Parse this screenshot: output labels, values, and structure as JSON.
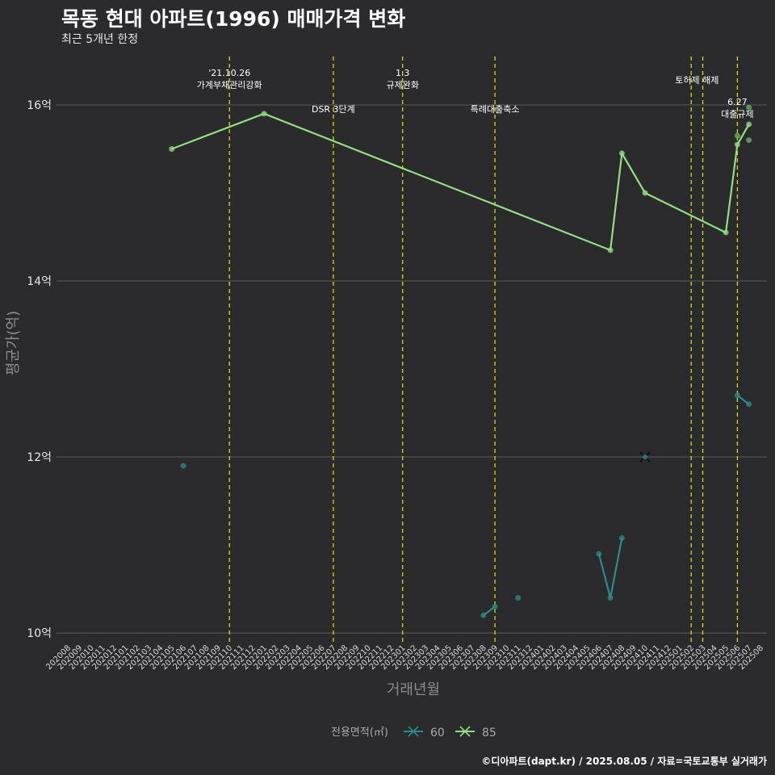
{
  "title": "목동 현대 아파트(1996) 매매가격 변화",
  "subtitle": "최근 5개년 한정",
  "caption": "©디아파트(dapt.kr) / 2025.08.05 / 자료=국토교통부 실거래가",
  "chart_data": {
    "type": "line",
    "xlabel": "거래년월",
    "ylabel": "평균가(억)",
    "ylim": [
      9.9,
      16.55
    ],
    "y_ticks": [
      10,
      12,
      14,
      16
    ],
    "y_tick_labels": [
      "10억",
      "12억",
      "14억",
      "16억"
    ],
    "legend_title": "전용면적(㎡)",
    "categories": [
      "202008",
      "202009",
      "202010",
      "202011",
      "202012",
      "202101",
      "202102",
      "202103",
      "202104",
      "202105",
      "202106",
      "202107",
      "202108",
      "202109",
      "202110",
      "202111",
      "202112",
      "202201",
      "202202",
      "202203",
      "202204",
      "202205",
      "202206",
      "202207",
      "202208",
      "202209",
      "202210",
      "202211",
      "202212",
      "202301",
      "202302",
      "202303",
      "202304",
      "202305",
      "202306",
      "202307",
      "202308",
      "202309",
      "202310",
      "202311",
      "202312",
      "202401",
      "202402",
      "202403",
      "202404",
      "202405",
      "202406",
      "202407",
      "202408",
      "202409",
      "202410",
      "202411",
      "202412",
      "202501",
      "202502",
      "202503",
      "202504",
      "202505",
      "202506",
      "202507",
      "202508"
    ],
    "series": [
      {
        "name": "60",
        "color": "#2a8c8c",
        "points": [
          {
            "x": "202106",
            "y": 11.9
          },
          {
            "x": "202308",
            "y": 10.2
          },
          {
            "x": "202309",
            "y": 10.3
          },
          {
            "x": "202311",
            "y": 10.4
          },
          {
            "x": "202406",
            "y": 10.9
          },
          {
            "x": "202407",
            "y": 10.4
          },
          {
            "x": "202408",
            "y": 11.08
          },
          {
            "x": "202410",
            "y": 12.0,
            "marker": "x"
          },
          {
            "x": "202506",
            "y": 12.7
          },
          {
            "x": "202507",
            "y": 12.6
          }
        ],
        "segments": [
          [
            "202308",
            "202309"
          ],
          [
            "202406",
            "202407",
            "202408"
          ],
          [
            "202506",
            "202507"
          ]
        ]
      },
      {
        "name": "85",
        "color": "#90e080",
        "points": [
          {
            "x": "202105",
            "y": 15.5
          },
          {
            "x": "202201",
            "y": 15.9
          },
          {
            "x": "202407",
            "y": 14.35
          },
          {
            "x": "202408",
            "y": 15.45
          },
          {
            "x": "202410",
            "y": 15.0
          },
          {
            "x": "202505",
            "y": 14.55
          },
          {
            "x": "202506",
            "y": 15.55
          },
          {
            "x": "202507",
            "y": 15.78
          }
        ],
        "line_points": [
          "202105",
          "202201",
          "202407",
          "202408",
          "202410",
          "202505",
          "202506",
          "202507"
        ],
        "scatter": [
          {
            "x": "202506",
            "y": 15.65
          },
          {
            "x": "202507",
            "y": 15.97
          },
          {
            "x": "202507",
            "y": 15.6
          }
        ]
      }
    ],
    "events": [
      {
        "x": "202110",
        "lines": [
          "'21.10.26",
          "가계부채관리강화"
        ],
        "row": "top"
      },
      {
        "x": "202207",
        "lines": [
          "DSR 3단계"
        ],
        "row": "low"
      },
      {
        "x": "202301",
        "lines": [
          "1.3",
          "규제완화"
        ],
        "row": "top"
      },
      {
        "x": "202309",
        "lines": [
          "특례대출축소"
        ],
        "row": "low"
      },
      {
        "x": "202502",
        "lines": [
          "토허제 해제"
        ],
        "row": "mid",
        "offset": 1
      },
      {
        "x": "202503",
        "lines": [],
        "row": "mid"
      },
      {
        "x": "202506",
        "lines": [
          "6.27",
          "대출규제"
        ],
        "row": "right"
      }
    ]
  }
}
